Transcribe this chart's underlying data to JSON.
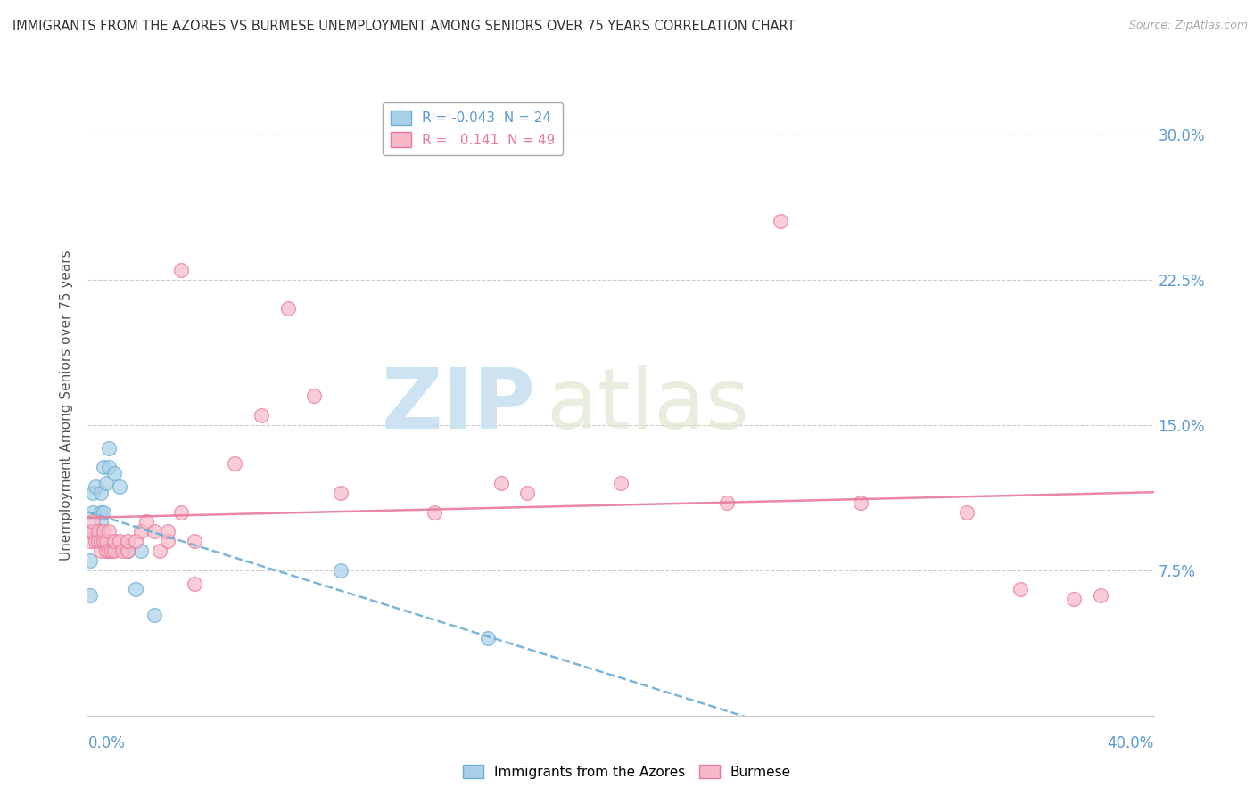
{
  "title": "IMMIGRANTS FROM THE AZORES VS BURMESE UNEMPLOYMENT AMONG SENIORS OVER 75 YEARS CORRELATION CHART",
  "source": "Source: ZipAtlas.com",
  "ylabel": "Unemployment Among Seniors over 75 years",
  "xlim": [
    0.0,
    0.4
  ],
  "ylim": [
    0.0,
    0.32
  ],
  "yticks": [
    0.0,
    0.075,
    0.15,
    0.225,
    0.3
  ],
  "ytick_labels": [
    "",
    "7.5%",
    "15.0%",
    "22.5%",
    "30.0%"
  ],
  "color_blue": "#a8d0e8",
  "color_blue_edge": "#6aaed6",
  "color_blue_line": "#6aaed6",
  "color_pink": "#f7b8c8",
  "color_pink_edge": "#e87a9a",
  "color_pink_line": "#e87a9a",
  "watermark_zip": "ZIP",
  "watermark_atlas": "atlas",
  "azores_x": [
    0.001,
    0.001,
    0.002,
    0.002,
    0.003,
    0.003,
    0.004,
    0.004,
    0.005,
    0.005,
    0.005,
    0.006,
    0.006,
    0.007,
    0.008,
    0.008,
    0.01,
    0.012,
    0.015,
    0.018,
    0.02,
    0.025,
    0.095,
    0.15
  ],
  "azores_y": [
    0.062,
    0.08,
    0.105,
    0.115,
    0.095,
    0.118,
    0.09,
    0.095,
    0.1,
    0.105,
    0.115,
    0.105,
    0.128,
    0.12,
    0.128,
    0.138,
    0.125,
    0.118,
    0.085,
    0.065,
    0.085,
    0.052,
    0.075,
    0.04
  ],
  "burmese_x": [
    0.001,
    0.001,
    0.002,
    0.002,
    0.003,
    0.004,
    0.004,
    0.005,
    0.005,
    0.006,
    0.006,
    0.007,
    0.007,
    0.008,
    0.008,
    0.009,
    0.01,
    0.01,
    0.012,
    0.013,
    0.015,
    0.015,
    0.018,
    0.02,
    0.022,
    0.025,
    0.027,
    0.03,
    0.03,
    0.035,
    0.04,
    0.055,
    0.065,
    0.085,
    0.095,
    0.13,
    0.155,
    0.165,
    0.2,
    0.24,
    0.26,
    0.29,
    0.33,
    0.35,
    0.37,
    0.38,
    0.035,
    0.075,
    0.04
  ],
  "burmese_y": [
    0.09,
    0.095,
    0.095,
    0.1,
    0.09,
    0.09,
    0.095,
    0.085,
    0.09,
    0.09,
    0.095,
    0.085,
    0.09,
    0.085,
    0.095,
    0.085,
    0.085,
    0.09,
    0.09,
    0.085,
    0.085,
    0.09,
    0.09,
    0.095,
    0.1,
    0.095,
    0.085,
    0.09,
    0.095,
    0.105,
    0.09,
    0.13,
    0.155,
    0.165,
    0.115,
    0.105,
    0.12,
    0.115,
    0.12,
    0.11,
    0.255,
    0.11,
    0.105,
    0.065,
    0.06,
    0.062,
    0.23,
    0.21,
    0.068
  ]
}
